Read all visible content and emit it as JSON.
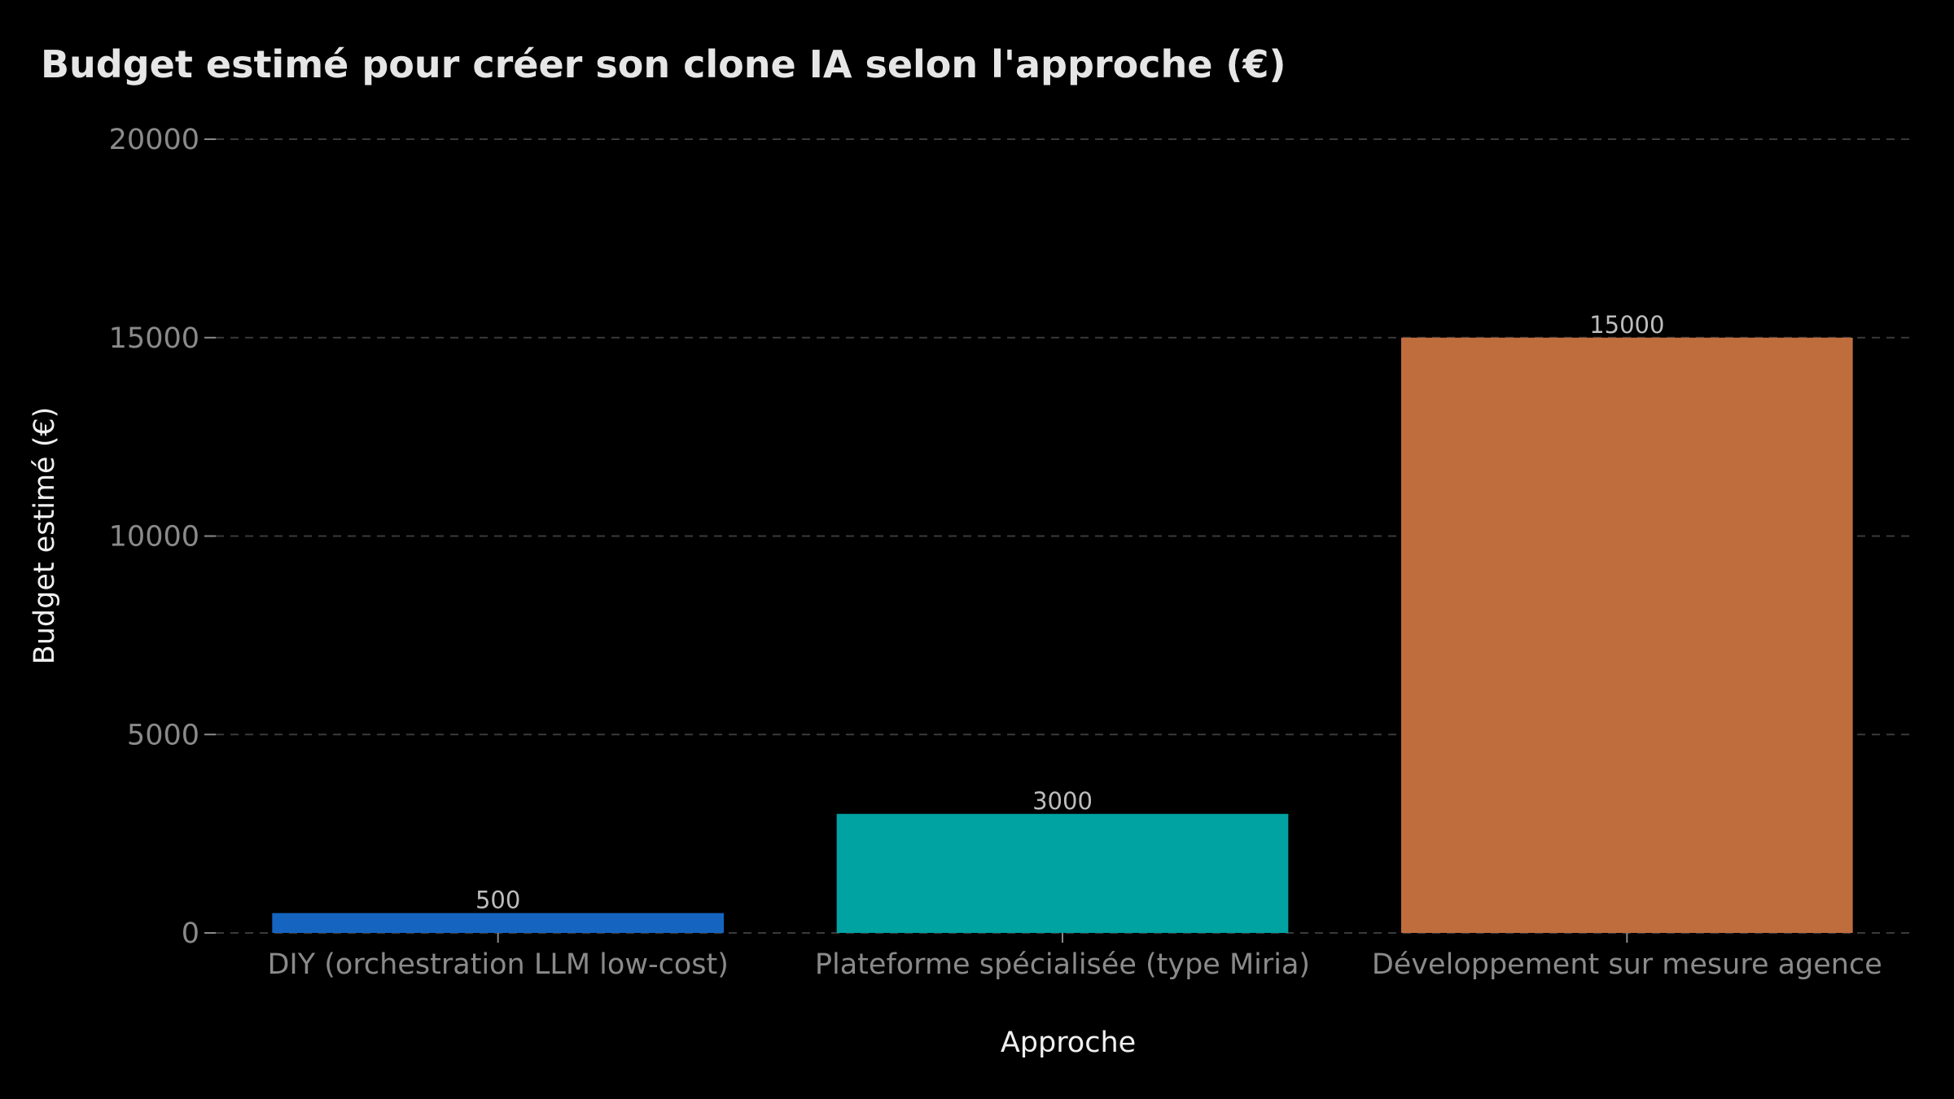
{
  "chart_data": {
    "type": "bar",
    "title": "Budget estimé pour créer son clone IA selon l'approche (€)",
    "xlabel": "Approche",
    "ylabel": "Budget estimé (€)",
    "categories": [
      "DIY (orchestration LLM low-cost)",
      "Plateforme spécialisée (type Miria)",
      "Développement sur mesure agence"
    ],
    "values": [
      500,
      3000,
      15000
    ],
    "data_labels": [
      "500",
      "3000",
      "15000"
    ],
    "colors": [
      "#1565c0",
      "#00a2a2",
      "#bf6d3d"
    ],
    "ylim": [
      0,
      20000
    ],
    "yticks": [
      0,
      5000,
      10000,
      15000,
      20000
    ],
    "ytick_labels": [
      "0",
      "5000",
      "10000",
      "15000",
      "20000"
    ],
    "grid": true,
    "grid_axis": "y",
    "legend": "none"
  }
}
